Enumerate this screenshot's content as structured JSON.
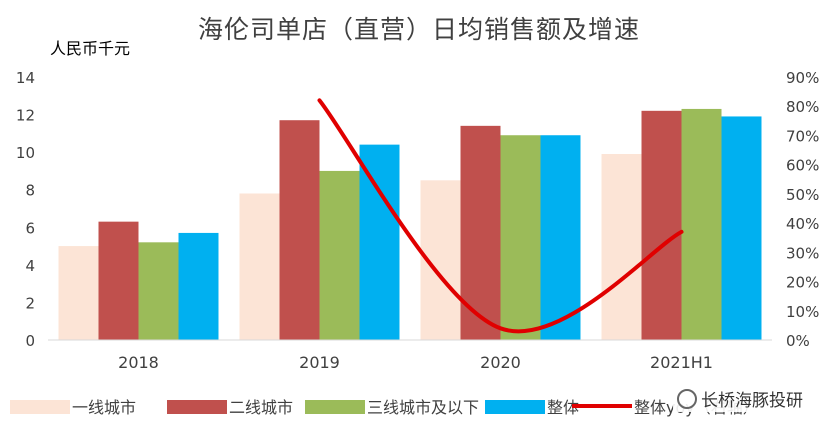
{
  "title": "海伦司单店（直营）日均销售额及增速",
  "y_unit": "人民币千元",
  "watermark_text": "长桥海豚投研",
  "chart_data": {
    "type": "bar",
    "categories": [
      "2018",
      "2019",
      "2020",
      "2021H1"
    ],
    "series": [
      {
        "name": "一线城市",
        "kind": "bar",
        "color": "#fce4d6",
        "values": [
          5.0,
          7.8,
          8.5,
          9.9
        ]
      },
      {
        "name": "二线城市",
        "kind": "bar",
        "color": "#c0504d",
        "values": [
          6.3,
          11.7,
          11.4,
          12.2
        ]
      },
      {
        "name": "三线城市及以下",
        "kind": "bar",
        "color": "#9bbb59",
        "values": [
          5.2,
          9.0,
          10.9,
          12.3
        ]
      },
      {
        "name": "整体",
        "kind": "bar",
        "color": "#00b0f0",
        "values": [
          5.7,
          10.4,
          10.9,
          11.9
        ]
      },
      {
        "name": "整体yoy（右轴）",
        "kind": "line",
        "color": "#e00000",
        "axis": "right",
        "values": [
          null,
          0.82,
          0.04,
          0.37
        ]
      }
    ],
    "y_left": {
      "min": 0,
      "max": 14,
      "ticks": [
        "0",
        "2",
        "4",
        "6",
        "8",
        "10",
        "12",
        "14"
      ]
    },
    "y_right": {
      "min": 0,
      "max": 0.9,
      "ticks": [
        "0%",
        "10%",
        "20%",
        "30%",
        "40%",
        "50%",
        "60%",
        "70%",
        "80%",
        "90%"
      ]
    },
    "grid": false,
    "legend": "bottom"
  }
}
